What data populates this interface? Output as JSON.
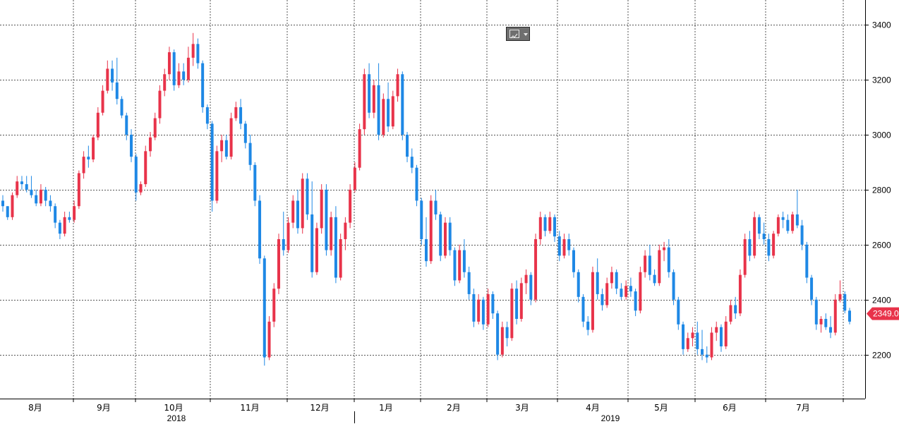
{
  "colors": {
    "up": "#e8334a",
    "down": "#1e88e5",
    "grid": "#555555",
    "price_tag": "#e8334a"
  },
  "toolbar": {
    "chart_type_icon": "line-chart-icon",
    "dropdown_icon": "chevron-down-icon"
  },
  "chart_data": {
    "type": "candlestick",
    "title": "",
    "xlabel": "",
    "ylabel": "",
    "ylim": [
      2040,
      3490
    ],
    "y_axis_side": "right",
    "y_ticks": [
      2200,
      2400,
      2600,
      2800,
      3000,
      3200,
      3400
    ],
    "y_tick_labels": [
      "2200",
      "2400",
      "2600",
      "2800",
      "3000",
      "3200",
      "3400"
    ],
    "month_labels": [
      "8月",
      "9月",
      "10月",
      "11月",
      "12月",
      "1月",
      "2月",
      "3月",
      "4月",
      "5月",
      "6月",
      "7月"
    ],
    "year_labels": [
      "2018",
      "2019"
    ],
    "last_price": 2349.0,
    "last_price_label": "2349.0",
    "grid": true,
    "candles_ohlc": [
      [
        2760,
        2780,
        2720,
        2740
      ],
      [
        2740,
        2740,
        2690,
        2700
      ],
      [
        2700,
        2790,
        2690,
        2780
      ],
      [
        2780,
        2850,
        2770,
        2830
      ],
      [
        2830,
        2850,
        2800,
        2820
      ],
      [
        2820,
        2850,
        2790,
        2800
      ],
      [
        2800,
        2850,
        2770,
        2780
      ],
      [
        2780,
        2800,
        2740,
        2750
      ],
      [
        2750,
        2820,
        2740,
        2800
      ],
      [
        2800,
        2810,
        2740,
        2760
      ],
      [
        2760,
        2780,
        2720,
        2740
      ],
      [
        2740,
        2750,
        2660,
        2680
      ],
      [
        2680,
        2690,
        2620,
        2640
      ],
      [
        2640,
        2720,
        2630,
        2700
      ],
      [
        2700,
        2720,
        2680,
        2690
      ],
      [
        2690,
        2760,
        2680,
        2740
      ],
      [
        2740,
        2870,
        2730,
        2860
      ],
      [
        2860,
        2940,
        2840,
        2920
      ],
      [
        2920,
        2960,
        2880,
        2910
      ],
      [
        2910,
        3000,
        2900,
        2990
      ],
      [
        2990,
        3100,
        2980,
        3080
      ],
      [
        3080,
        3180,
        3070,
        3160
      ],
      [
        3160,
        3270,
        3150,
        3240
      ],
      [
        3240,
        3270,
        3160,
        3190
      ],
      [
        3190,
        3280,
        3110,
        3130
      ],
      [
        3130,
        3140,
        3060,
        3070
      ],
      [
        3070,
        3080,
        2980,
        3000
      ],
      [
        3000,
        3020,
        2900,
        2920
      ],
      [
        2920,
        2930,
        2760,
        2790
      ],
      [
        2790,
        2830,
        2780,
        2820
      ],
      [
        2820,
        2960,
        2810,
        2940
      ],
      [
        2940,
        3010,
        2920,
        2990
      ],
      [
        2990,
        3080,
        2980,
        3060
      ],
      [
        3060,
        3180,
        3040,
        3160
      ],
      [
        3160,
        3240,
        3140,
        3220
      ],
      [
        3220,
        3320,
        3200,
        3300
      ],
      [
        3300,
        3310,
        3160,
        3180
      ],
      [
        3180,
        3260,
        3170,
        3230
      ],
      [
        3230,
        3260,
        3180,
        3200
      ],
      [
        3200,
        3320,
        3190,
        3280
      ],
      [
        3280,
        3370,
        3250,
        3330
      ],
      [
        3330,
        3350,
        3240,
        3260
      ],
      [
        3260,
        3270,
        3080,
        3100
      ],
      [
        3100,
        3110,
        3020,
        3040
      ],
      [
        3040,
        3050,
        2720,
        2760
      ],
      [
        2760,
        2960,
        2750,
        2940
      ],
      [
        2940,
        3000,
        2900,
        2980
      ],
      [
        2980,
        3000,
        2910,
        2920
      ],
      [
        2920,
        3080,
        2910,
        3060
      ],
      [
        3060,
        3120,
        3050,
        3100
      ],
      [
        3100,
        3130,
        3020,
        3040
      ],
      [
        3040,
        3050,
        2950,
        2970
      ],
      [
        2970,
        3000,
        2870,
        2890
      ],
      [
        2890,
        2900,
        2740,
        2760
      ],
      [
        2760,
        2780,
        2530,
        2550
      ],
      [
        2550,
        2560,
        2160,
        2190
      ],
      [
        2190,
        2340,
        2180,
        2320
      ],
      [
        2320,
        2460,
        2300,
        2440
      ],
      [
        2440,
        2640,
        2420,
        2620
      ],
      [
        2620,
        2720,
        2560,
        2580
      ],
      [
        2580,
        2700,
        2570,
        2680
      ],
      [
        2680,
        2780,
        2660,
        2760
      ],
      [
        2760,
        2800,
        2640,
        2660
      ],
      [
        2660,
        2860,
        2640,
        2840
      ],
      [
        2840,
        2860,
        2690,
        2710
      ],
      [
        2710,
        2830,
        2480,
        2500
      ],
      [
        2500,
        2680,
        2490,
        2660
      ],
      [
        2660,
        2820,
        2640,
        2800
      ],
      [
        2800,
        2820,
        2560,
        2580
      ],
      [
        2580,
        2720,
        2560,
        2700
      ],
      [
        2700,
        2740,
        2460,
        2480
      ],
      [
        2480,
        2640,
        2470,
        2620
      ],
      [
        2620,
        2700,
        2580,
        2680
      ],
      [
        2680,
        2820,
        2660,
        2800
      ],
      [
        2800,
        2900,
        2790,
        2880
      ],
      [
        2880,
        3040,
        2870,
        3020
      ],
      [
        3020,
        3240,
        3000,
        3220
      ],
      [
        3220,
        3260,
        3060,
        3080
      ],
      [
        3080,
        3200,
        3060,
        3180
      ],
      [
        3180,
        3260,
        2980,
        3000
      ],
      [
        3000,
        3150,
        2990,
        3130
      ],
      [
        3130,
        3190,
        3010,
        3030
      ],
      [
        3030,
        3160,
        3020,
        3140
      ],
      [
        3140,
        3240,
        3120,
        3220
      ],
      [
        3220,
        3230,
        2980,
        3000
      ],
      [
        3000,
        3010,
        2900,
        2920
      ],
      [
        2920,
        2950,
        2860,
        2880
      ],
      [
        2880,
        2890,
        2740,
        2760
      ],
      [
        2760,
        2770,
        2600,
        2620
      ],
      [
        2620,
        2700,
        2520,
        2540
      ],
      [
        2540,
        2780,
        2530,
        2760
      ],
      [
        2760,
        2800,
        2690,
        2710
      ],
      [
        2710,
        2720,
        2540,
        2560
      ],
      [
        2560,
        2700,
        2550,
        2680
      ],
      [
        2680,
        2700,
        2560,
        2580
      ],
      [
        2580,
        2590,
        2450,
        2470
      ],
      [
        2470,
        2600,
        2460,
        2580
      ],
      [
        2580,
        2620,
        2480,
        2500
      ],
      [
        2500,
        2520,
        2400,
        2420
      ],
      [
        2420,
        2440,
        2300,
        2320
      ],
      [
        2320,
        2420,
        2310,
        2400
      ],
      [
        2400,
        2410,
        2290,
        2310
      ],
      [
        2310,
        2440,
        2300,
        2420
      ],
      [
        2420,
        2430,
        2330,
        2350
      ],
      [
        2350,
        2360,
        2180,
        2200
      ],
      [
        2200,
        2320,
        2190,
        2300
      ],
      [
        2300,
        2320,
        2230,
        2260
      ],
      [
        2260,
        2460,
        2250,
        2440
      ],
      [
        2440,
        2470,
        2310,
        2330
      ],
      [
        2330,
        2480,
        2320,
        2460
      ],
      [
        2460,
        2510,
        2420,
        2490
      ],
      [
        2490,
        2500,
        2380,
        2400
      ],
      [
        2400,
        2640,
        2390,
        2620
      ],
      [
        2620,
        2720,
        2600,
        2700
      ],
      [
        2700,
        2710,
        2630,
        2650
      ],
      [
        2650,
        2720,
        2640,
        2700
      ],
      [
        2700,
        2710,
        2610,
        2630
      ],
      [
        2630,
        2650,
        2540,
        2560
      ],
      [
        2560,
        2640,
        2550,
        2620
      ],
      [
        2620,
        2640,
        2560,
        2580
      ],
      [
        2580,
        2590,
        2480,
        2500
      ],
      [
        2500,
        2510,
        2390,
        2410
      ],
      [
        2410,
        2420,
        2300,
        2320
      ],
      [
        2320,
        2340,
        2270,
        2290
      ],
      [
        2290,
        2520,
        2280,
        2500
      ],
      [
        2500,
        2550,
        2400,
        2420
      ],
      [
        2420,
        2440,
        2360,
        2380
      ],
      [
        2380,
        2480,
        2370,
        2460
      ],
      [
        2460,
        2520,
        2440,
        2500
      ],
      [
        2500,
        2510,
        2420,
        2440
      ],
      [
        2440,
        2460,
        2400,
        2410
      ],
      [
        2410,
        2470,
        2400,
        2450
      ],
      [
        2450,
        2480,
        2410,
        2430
      ],
      [
        2430,
        2440,
        2340,
        2360
      ],
      [
        2360,
        2520,
        2350,
        2500
      ],
      [
        2500,
        2580,
        2480,
        2560
      ],
      [
        2560,
        2600,
        2470,
        2490
      ],
      [
        2490,
        2510,
        2450,
        2460
      ],
      [
        2460,
        2600,
        2450,
        2580
      ],
      [
        2580,
        2610,
        2540,
        2590
      ],
      [
        2590,
        2620,
        2480,
        2500
      ],
      [
        2500,
        2510,
        2380,
        2400
      ],
      [
        2400,
        2410,
        2290,
        2310
      ],
      [
        2310,
        2320,
        2200,
        2220
      ],
      [
        2220,
        2280,
        2210,
        2260
      ],
      [
        2260,
        2300,
        2230,
        2280
      ],
      [
        2280,
        2320,
        2200,
        2220
      ],
      [
        2220,
        2290,
        2180,
        2200
      ],
      [
        2200,
        2230,
        2170,
        2190
      ],
      [
        2190,
        2300,
        2180,
        2280
      ],
      [
        2280,
        2320,
        2250,
        2300
      ],
      [
        2300,
        2310,
        2210,
        2230
      ],
      [
        2230,
        2340,
        2220,
        2320
      ],
      [
        2320,
        2400,
        2310,
        2380
      ],
      [
        2380,
        2410,
        2330,
        2350
      ],
      [
        2350,
        2510,
        2340,
        2490
      ],
      [
        2490,
        2640,
        2480,
        2620
      ],
      [
        2620,
        2650,
        2540,
        2560
      ],
      [
        2560,
        2720,
        2550,
        2700
      ],
      [
        2700,
        2710,
        2620,
        2640
      ],
      [
        2640,
        2680,
        2600,
        2620
      ],
      [
        2620,
        2640,
        2540,
        2560
      ],
      [
        2560,
        2650,
        2550,
        2640
      ],
      [
        2640,
        2710,
        2630,
        2700
      ],
      [
        2700,
        2720,
        2660,
        2690
      ],
      [
        2690,
        2710,
        2640,
        2650
      ],
      [
        2650,
        2720,
        2640,
        2710
      ],
      [
        2710,
        2800,
        2660,
        2670
      ],
      [
        2670,
        2690,
        2580,
        2600
      ],
      [
        2600,
        2610,
        2460,
        2480
      ],
      [
        2480,
        2490,
        2380,
        2400
      ],
      [
        2400,
        2410,
        2290,
        2310
      ],
      [
        2310,
        2340,
        2280,
        2330
      ],
      [
        2330,
        2350,
        2290,
        2300
      ],
      [
        2300,
        2340,
        2260,
        2280
      ],
      [
        2280,
        2420,
        2270,
        2400
      ],
      [
        2400,
        2470,
        2390,
        2420
      ],
      [
        2420,
        2430,
        2350,
        2360
      ],
      [
        2360,
        2370,
        2310,
        2320
      ]
    ]
  }
}
